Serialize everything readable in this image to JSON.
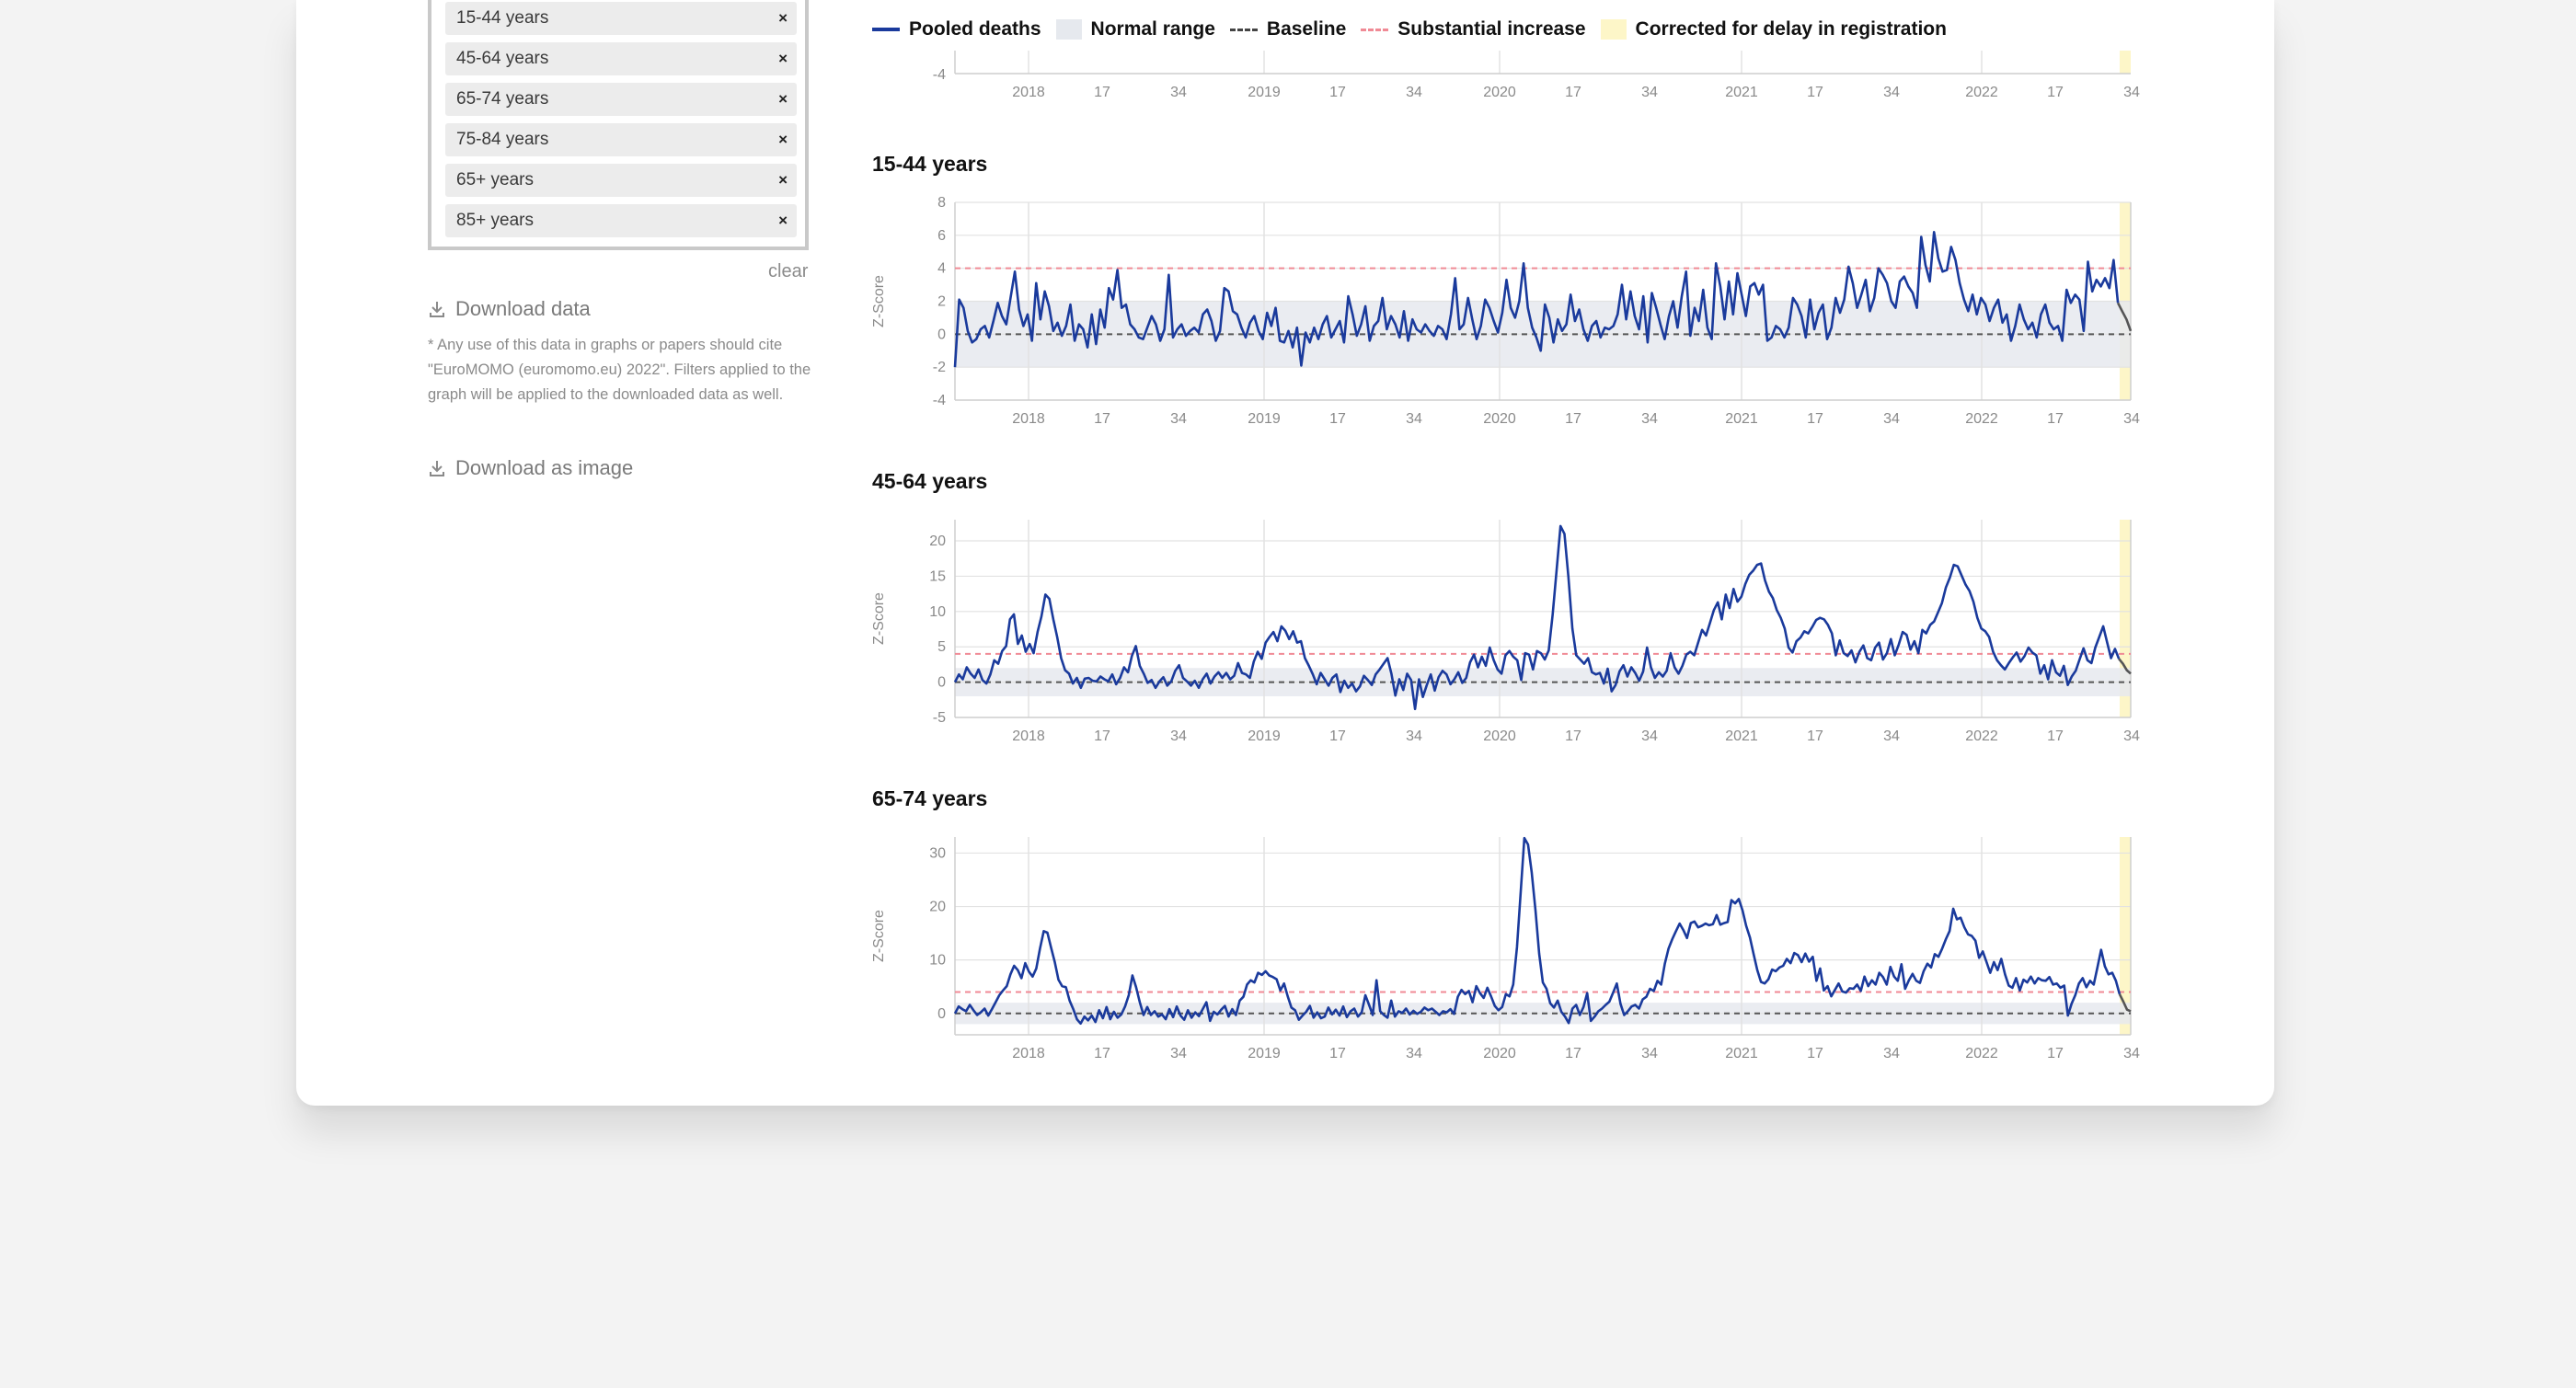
{
  "filters": {
    "chips": [
      "15-44 years",
      "45-64 years",
      "65-74 years",
      "75-84 years",
      "65+ years",
      "85+ years"
    ],
    "remove_symbol": "×",
    "clear_label": "clear"
  },
  "download": {
    "data_label": "Download data",
    "note": "* Any use of this data in graphs or papers should cite \"EuroMOMO (euromomo.eu) 2022\". Filters applied to the graph will be applied to the downloaded data as well.",
    "image_label": "Download as image"
  },
  "legend": {
    "pooled": "Pooled deaths",
    "normal": "Normal range",
    "baseline": "Baseline",
    "substantial": "Substantial increase",
    "delay": "Corrected for delay in registration"
  },
  "colors": {
    "line": "#1a3a9c",
    "line_delay": "#555555",
    "range": "#e6e9ee",
    "baseline": "#555555",
    "substantial": "#f08a95",
    "delay": "#fdf6c8",
    "grid": "#e2e2e2"
  },
  "axis_ticks": [
    "2018",
    "17",
    "34",
    "2019",
    "17",
    "34",
    "2020",
    "17",
    "34",
    "2021",
    "17",
    "34",
    "2022",
    "17",
    "34"
  ],
  "ylabel": "Z-Score",
  "chart_data": [
    {
      "type": "line",
      "title": "",
      "visible_yticks": [
        -4
      ],
      "xlabels": [
        "2018",
        "17",
        "34",
        "2019",
        "17",
        "34",
        "2020",
        "17",
        "34",
        "2021",
        "17",
        "34",
        "2022",
        "17",
        "34"
      ]
    },
    {
      "type": "line",
      "title": "15-44 years",
      "ylabel": "Z-Score",
      "ylim": [
        -4,
        8
      ],
      "yticks": [
        -4,
        -2,
        0,
        2,
        4,
        6,
        8
      ],
      "normal_range": [
        -2,
        2
      ],
      "baseline": 0,
      "substantial_increase": 4,
      "series": [
        {
          "name": "Pooled deaths",
          "values": [
            -2,
            2.1,
            1.6,
            0.2,
            -0.5,
            -0.3,
            0.3,
            0.5,
            -0.2,
            0.8,
            1.9,
            1.1,
            0.6,
            2.2,
            3.8,
            1.5,
            0.5,
            1.2,
            -0.4,
            3.1,
            0.9,
            2.6,
            1.7,
            0.2,
            0.7,
            -0.1,
            0.5,
            1.8,
            -0.4,
            0.6,
            0.3,
            -0.8,
            1.2,
            -0.6,
            1.5,
            0.4,
            2.8,
            2.1,
            3.9,
            1.6,
            1.8,
            0.6,
            0.3,
            -0.2,
            -0.3,
            0.4,
            1.1,
            0.6,
            -0.4,
            0.3,
            3.6,
            -0.2,
            0.3,
            0.6,
            -0.1,
            0.2,
            0.4,
            0.1,
            1.2,
            1.5,
            0.8,
            -0.4,
            0.2,
            2.8,
            2.6,
            1.4,
            1.2,
            0.4,
            -0.2,
            0.7,
            1.1,
            0.2,
            -0.3,
            1.3,
            0.5,
            1.6,
            -0.4,
            -0.5,
            0.2,
            -0.8,
            0.4,
            -1.9,
            0.1,
            -0.5,
            0.4,
            -0.3,
            0.6,
            1.1,
            -0.2,
            0.3,
            0.8,
            -0.5,
            2.3,
            1.2,
            -0.1,
            0.6,
            1.7,
            -0.4,
            0.5,
            0.8,
            2.2,
            0.3,
            1.1,
            0.6,
            -0.2,
            1.4,
            -0.4,
            0.9,
            0.3,
            0.1,
            0.6,
            0.2,
            -0.1,
            0.5,
            0.3,
            -0.3,
            1.2,
            3.4,
            0.3,
            0.6,
            2.2,
            0.9,
            -0.3,
            0.5,
            2.1,
            1.6,
            0.8,
            0.1,
            1.3,
            3.3,
            1.6,
            1.0,
            2.0,
            4.3,
            1.6,
            0.4,
            -0.2,
            -1.0,
            1.8,
            1.0,
            -0.5,
            0.9,
            0.2,
            0.6,
            2.4,
            0.8,
            1.5,
            0.3,
            -0.4,
            0.5,
            0.8,
            -0.2,
            0.4,
            0.3,
            0.5,
            1.2,
            3.0,
            0.9,
            2.6,
            1.1,
            0.3,
            2.3,
            -0.5,
            2.5,
            1.6,
            0.6,
            -0.3,
            1.1,
            2.0,
            0.4,
            2.3,
            3.8,
            -0.1,
            1.6,
            0.8,
            2.7,
            0.4,
            -0.3,
            4.3,
            2.9,
            0.9,
            3.2,
            1.2,
            3.7,
            2.4,
            1.1,
            2.9,
            3.1,
            2.4,
            3.0,
            -0.4,
            -0.2,
            0.5,
            0.3,
            -0.2,
            0.4,
            2.2,
            1.8,
            1.1,
            -0.2,
            2.1,
            0.3,
            1.3,
            1.8,
            -0.3,
            0.4,
            2.2,
            1.3,
            2.1,
            4.1,
            3.1,
            1.6,
            2.4,
            3.3,
            1.4,
            2.2,
            4.0,
            3.6,
            3.1,
            2.0,
            1.6,
            3.2,
            3.5,
            2.9,
            2.5,
            1.6,
            5.9,
            4.2,
            3.2,
            6.2,
            4.6,
            3.8,
            3.9,
            5.3,
            4.5,
            3.1,
            2.1,
            1.4,
            2.4,
            1.2,
            2.2,
            1.8,
            0.8,
            1.6,
            2.1,
            0.7,
            1.2,
            -0.4,
            0.5,
            1.8,
            0.9,
            0.3,
            0.7,
            -0.2,
            1.2,
            1.8,
            0.7,
            0.3,
            0.5,
            -0.4,
            2.7,
            1.9,
            2.4,
            2.1,
            0.2,
            4.4,
            2.6,
            3.3,
            2.9,
            3.4,
            2.8,
            4.5,
            1.9,
            1.4,
            0.9,
            0.2
          ]
        }
      ]
    },
    {
      "type": "line",
      "title": "45-64 years",
      "ylabel": "Z-Score",
      "ylim": [
        -5,
        23
      ],
      "yticks": [
        -5,
        0,
        5,
        10,
        15,
        20
      ],
      "normal_range": [
        -2,
        2
      ],
      "baseline": 0,
      "substantial_increase": 4,
      "series": [
        {
          "name": "Pooled deaths",
          "values": [
            0,
            1.1,
            0.4,
            2.1,
            1.2,
            0.6,
            1.8,
            0.3,
            -0.2,
            1.1,
            3.1,
            2.6,
            4.4,
            5.1,
            8.9,
            9.6,
            5.4,
            6.6,
            4.3,
            5.4,
            4.1,
            7.1,
            9.3,
            12.4,
            11.8,
            8.9,
            6.4,
            3.4,
            1.7,
            1.2,
            -0.2,
            0.6,
            -0.8,
            0.5,
            0.6,
            0.2,
            0.1,
            0.8,
            0.4,
            0.1,
            1.1,
            -0.3,
            0.6,
            2.1,
            1.4,
            3.7,
            5.1,
            2.3,
            1.2,
            -0.1,
            0.3,
            -0.8,
            0.1,
            0.7,
            -0.5,
            0.1,
            1.6,
            2.4,
            0.6,
            0.1,
            -0.5,
            0.2,
            -0.8,
            0.4,
            1.2,
            -0.2,
            0.8,
            1.4,
            0.6,
            1.3,
            0.4,
            0.9,
            2.7,
            1.3,
            1.1,
            0.6,
            2.9,
            4.3,
            3.3,
            5.6,
            6.4,
            7.1,
            5.8,
            7.9,
            7.3,
            6.1,
            7.2,
            5.6,
            5.8,
            3.4,
            2.3,
            1.1,
            -0.3,
            1.3,
            0.4,
            -0.5,
            0.6,
            1.1,
            -1.4,
            0.2,
            -0.8,
            -0.2,
            -1.3,
            -0.6,
            0.9,
            0.3,
            -0.4,
            1.1,
            1.8,
            2.6,
            3.4,
            1.2,
            -1.9,
            0.4,
            -1.1,
            1.2,
            0.3,
            -3.8,
            0.4,
            -2.1,
            -0.4,
            1.1,
            -1.2,
            0.7,
            1.6,
            1.1,
            -0.3,
            0.4,
            1.4,
            -0.1,
            0.6,
            2.8,
            3.9,
            2.1,
            3.6,
            2.3,
            4.9,
            3.1,
            1.8,
            1.2,
            3.8,
            4.4,
            3.6,
            3.1,
            0.3,
            4.1,
            3.9,
            1.8,
            4.4,
            4.1,
            3.2,
            4.5,
            9.6,
            15.9,
            22.1,
            21.0,
            14.9,
            7.6,
            3.8,
            3.2,
            2.6,
            3.4,
            1.4,
            1.1,
            1.3,
            -0.2,
            1.9,
            -1.3,
            -0.4,
            1.5,
            2.4,
            0.8,
            2.1,
            1.3,
            0.2,
            1.5,
            4.9,
            2.1,
            0.6,
            1.4,
            0.8,
            1.6,
            4.1,
            2.1,
            1.2,
            2.3,
            3.9,
            4.3,
            3.8,
            5.6,
            7.4,
            6.6,
            8.4,
            10.2,
            11.3,
            8.9,
            12.4,
            10.5,
            13.2,
            11.4,
            12.1,
            13.9,
            15.2,
            15.8,
            16.6,
            16.8,
            14.4,
            12.8,
            11.9,
            10.2,
            9.1,
            7.6,
            4.9,
            4.2,
            5.8,
            6.3,
            7.2,
            6.9,
            7.8,
            8.8,
            9.1,
            8.9,
            8.1,
            6.9,
            3.8,
            5.9,
            4.1,
            3.7,
            4.5,
            2.8,
            4.3,
            5.2,
            3.4,
            3.1,
            4.9,
            5.6,
            3.2,
            4.1,
            6.1,
            3.8,
            5.3,
            7.1,
            6.7,
            4.6,
            5.8,
            4.1,
            7.4,
            6.9,
            8.1,
            8.6,
            9.9,
            11.2,
            13.4,
            14.8,
            16.6,
            16.4,
            15.1,
            13.8,
            12.9,
            11.4,
            9.1,
            7.6,
            7.2,
            6.4,
            4.3,
            3.1,
            2.4,
            1.8,
            2.7,
            3.5,
            4.2,
            2.9,
            3.7,
            4.9,
            4.2,
            3.8,
            1.2,
            2.4,
            0.4,
            3.1,
            1.4,
            0.9,
            2.3,
            -0.4,
            0.8,
            1.6,
            3.2,
            4.8,
            3.1,
            2.7,
            4.9,
            6.4,
            7.9,
            5.6,
            3.4,
            4.7,
            3.3,
            2.6,
            1.7,
            1.2
          ]
        }
      ]
    },
    {
      "type": "line",
      "title": "65-74 years",
      "ylabel": "Z-Score",
      "ylim": [
        -4,
        33
      ],
      "yticks": [
        0,
        10,
        20,
        30
      ],
      "normal_range": [
        -2,
        2
      ],
      "baseline": 0,
      "substantial_increase": 4,
      "series": [
        {
          "name": "Pooled deaths",
          "values": [
            0,
            1.3,
            0.8,
            0.4,
            1.6,
            0.6,
            -0.3,
            0.2,
            0.9,
            -0.4,
            0.8,
            2.1,
            3.4,
            4.3,
            5.1,
            7.3,
            8.9,
            8.1,
            6.6,
            9.4,
            7.8,
            6.9,
            8.4,
            12.1,
            15.4,
            15.1,
            12.3,
            9.6,
            6.3,
            5.1,
            4.9,
            2.4,
            0.8,
            -1.1,
            -1.9,
            -0.6,
            -1.3,
            -0.4,
            -1.6,
            0.6,
            -0.9,
            1.2,
            -1.1,
            0.3,
            -0.8,
            -0.2,
            1.3,
            3.4,
            7.1,
            4.9,
            2.1,
            -0.3,
            1.2,
            -0.3,
            0.4,
            -0.6,
            -0.2,
            -1.1,
            0.8,
            -0.7,
            1.3,
            -0.4,
            -1.2,
            0.6,
            -0.8,
            0.2,
            -0.5,
            0.8,
            2.1,
            -1.4,
            0.3,
            -0.2,
            0.7,
            1.4,
            -0.6,
            0.8,
            -0.3,
            2.4,
            3.1,
            5.4,
            6.2,
            5.8,
            7.6,
            7.2,
            7.9,
            7.1,
            6.8,
            6.4,
            4.3,
            5.6,
            3.2,
            1.1,
            0.6,
            -1.2,
            -0.4,
            0.3,
            1.4,
            -0.8,
            0.2,
            -0.9,
            -0.6,
            1.1,
            -0.2,
            0.7,
            -0.4,
            1.3,
            -0.7,
            0.4,
            0.9,
            -0.6,
            0.2,
            3.4,
            1.6,
            -0.3,
            6.2,
            0.4,
            -0.3,
            -0.8,
            2.4,
            -0.6,
            0.4,
            0.1,
            0.9,
            -0.2,
            0.5,
            -0.1,
            0.3,
            1.1,
            0.6,
            0.9,
            0.3,
            -0.3,
            0.4,
            0.2,
            0.8,
            -0.1,
            3.1,
            4.4,
            3.6,
            4.2,
            2.1,
            5.1,
            3.8,
            2.9,
            4.8,
            3.2,
            1.4,
            0.6,
            1.2,
            3.6,
            3.2,
            5.4,
            12.4,
            22.6,
            32.8,
            31.6,
            26.4,
            19.3,
            11.2,
            5.8,
            4.6,
            1.9,
            1.1,
            2.4,
            0.3,
            -0.6,
            -1.8,
            0.9,
            1.6,
            -0.3,
            1.2,
            3.8,
            -1.4,
            -0.6,
            0.4,
            0.9,
            1.6,
            2.2,
            3.9,
            5.6,
            1.8,
            -0.3,
            0.4,
            1.3,
            1.6,
            0.9,
            2.6,
            3.1,
            4.6,
            4.2,
            6.1,
            5.4,
            9.3,
            12.1,
            13.9,
            15.4,
            16.8,
            15.6,
            14.1,
            16.9,
            17.2,
            16.1,
            16.4,
            16.8,
            16.5,
            16.7,
            18.4,
            16.6,
            16.9,
            17.1,
            21.2,
            20.6,
            21.4,
            19.3,
            16.4,
            14.2,
            11.1,
            8.1,
            5.9,
            5.6,
            6.4,
            8.2,
            7.9,
            8.6,
            8.9,
            10.2,
            9.4,
            11.3,
            10.9,
            9.6,
            11.2,
            9.7,
            10.6,
            6.1,
            8.4,
            4.3,
            5.1,
            3.2,
            4.4,
            5.6,
            4.1,
            3.9,
            4.7,
            4.6,
            5.4,
            4.2,
            6.9,
            5.1,
            6.2,
            5.4,
            7.6,
            6.8,
            5.4,
            8.7,
            6.9,
            6.1,
            9.2,
            4.6,
            6.2,
            7.4,
            6.1,
            5.7,
            7.9,
            9.3,
            8.6,
            11.1,
            10.6,
            12.1,
            13.9,
            15.4,
            19.6,
            17.6,
            17.9,
            16.1,
            14.8,
            14.5,
            13.6,
            10.4,
            11.6,
            9.6,
            7.6,
            9.6,
            8.1,
            10.2,
            7.3,
            5.2,
            4.8,
            6.6,
            4.3,
            6.3,
            5.8,
            6.9,
            5.6,
            6.6,
            6.2,
            6.1,
            6.8,
            5.4,
            5.6,
            4.8,
            5.2,
            -0.4,
            1.8,
            3.4,
            5.6,
            6.6,
            4.9,
            6.1,
            5.4,
            8.6,
            11.9,
            8.8,
            7.3,
            7.6,
            6.1,
            3.6,
            2.2,
            0.7,
            0.4
          ]
        }
      ]
    }
  ]
}
